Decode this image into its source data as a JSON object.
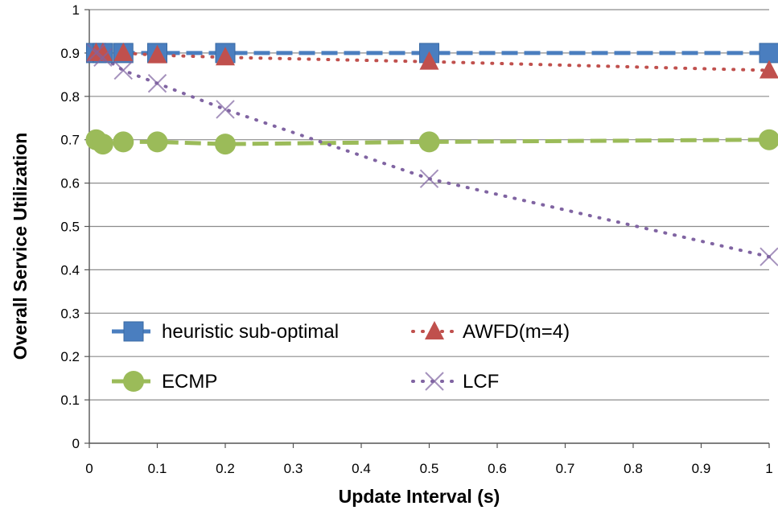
{
  "chart_data": {
    "type": "line",
    "xlabel": "Update Interval (s)",
    "ylabel": "Overall Service Utilization",
    "xlim": [
      0,
      1
    ],
    "ylim": [
      0,
      1
    ],
    "xticks": [
      "0",
      "0.1",
      "0.2",
      "0.3",
      "0.4",
      "0.5",
      "0.6",
      "0.7",
      "0.8",
      "0.9",
      "1"
    ],
    "yticks": [
      "0",
      "0.1",
      "0.2",
      "0.3",
      "0.4",
      "0.5",
      "0.6",
      "0.7",
      "0.8",
      "0.9",
      "1"
    ],
    "grid": "horizontal",
    "legend_placement": "bottom-left",
    "series": [
      {
        "name": "heuristic sub-optimal",
        "color": "#4a7ebf",
        "marker": "square",
        "line_style": "dashed",
        "x": [
          0.01,
          0.02,
          0.05,
          0.1,
          0.2,
          0.5,
          1
        ],
        "y": [
          0.9,
          0.9,
          0.9,
          0.9,
          0.9,
          0.9,
          0.9
        ]
      },
      {
        "name": "AWFD(m=4)",
        "color": "#c0504d",
        "marker": "triangle",
        "line_style": "dotted",
        "x": [
          0.01,
          0.02,
          0.05,
          0.1,
          0.2,
          0.5,
          1
        ],
        "y": [
          0.9,
          0.9,
          0.9,
          0.895,
          0.89,
          0.88,
          0.86
        ]
      },
      {
        "name": "ECMP",
        "color": "#9bbb59",
        "marker": "circle",
        "line_style": "dashed",
        "x": [
          0.01,
          0.02,
          0.05,
          0.1,
          0.2,
          0.5,
          1
        ],
        "y": [
          0.7,
          0.69,
          0.695,
          0.695,
          0.69,
          0.695,
          0.7
        ]
      },
      {
        "name": "LCF",
        "color": "#8064a2",
        "marker": "x",
        "line_style": "dotted",
        "x": [
          0.01,
          0.02,
          0.05,
          0.1,
          0.2,
          0.5,
          1
        ],
        "y": [
          0.9,
          0.89,
          0.86,
          0.83,
          0.77,
          0.61,
          0.43
        ]
      }
    ]
  }
}
